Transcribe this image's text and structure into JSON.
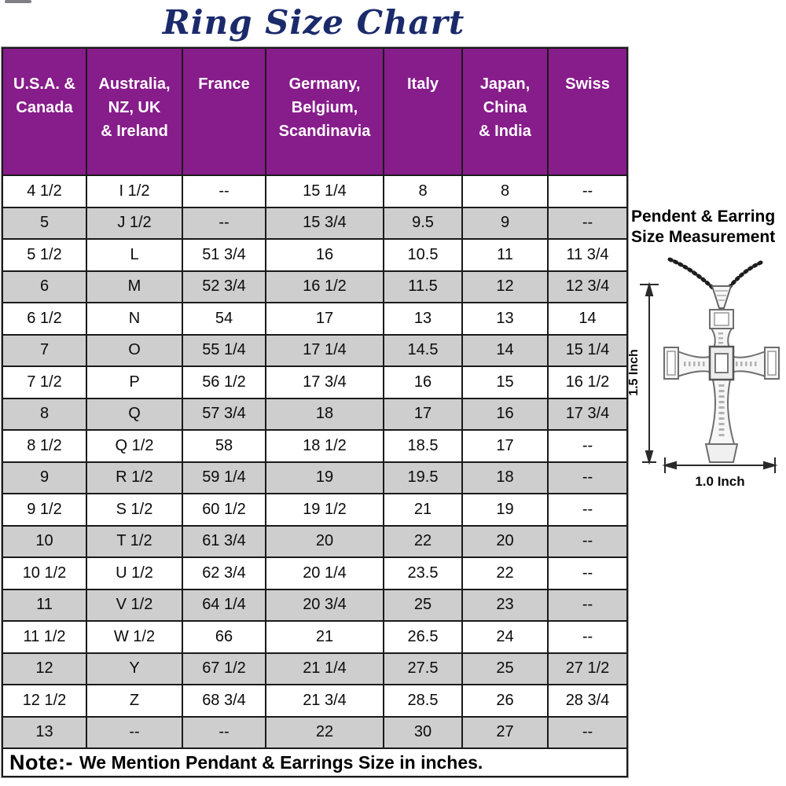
{
  "title": "Ring Size Chart",
  "table": {
    "headers": [
      "U.S.A. &\nCanada",
      "Australia,\nNZ, UK\n& Ireland",
      "France",
      "Germany,\nBelgium,\nScandinavia",
      "Italy",
      "Japan,\nChina\n& India",
      "Swiss"
    ],
    "rows": [
      [
        "4 1/2",
        "I 1/2",
        "--",
        "15 1/4",
        "8",
        "8",
        "--"
      ],
      [
        "5",
        "J 1/2",
        "--",
        "15 3/4",
        "9.5",
        "9",
        "--"
      ],
      [
        "5 1/2",
        "L",
        "51 3/4",
        "16",
        "10.5",
        "11",
        "11 3/4"
      ],
      [
        "6",
        "M",
        "52 3/4",
        "16 1/2",
        "11.5",
        "12",
        "12 3/4"
      ],
      [
        "6 1/2",
        "N",
        "54",
        "17",
        "13",
        "13",
        "14"
      ],
      [
        "7",
        "O",
        "55 1/4",
        "17 1/4",
        "14.5",
        "14",
        "15 1/4"
      ],
      [
        "7 1/2",
        "P",
        "56 1/2",
        "17 3/4",
        "16",
        "15",
        "16 1/2"
      ],
      [
        "8",
        "Q",
        "57 3/4",
        "18",
        "17",
        "16",
        "17 3/4"
      ],
      [
        "8 1/2",
        "Q 1/2",
        "58",
        "18 1/2",
        "18.5",
        "17",
        "--"
      ],
      [
        "9",
        "R 1/2",
        "59 1/4",
        "19",
        "19.5",
        "18",
        "--"
      ],
      [
        "9 1/2",
        "S 1/2",
        "60 1/2",
        "19 1/2",
        "21",
        "19",
        "--"
      ],
      [
        "10",
        "T 1/2",
        "61 3/4",
        "20",
        "22",
        "20",
        "--"
      ],
      [
        "10 1/2",
        "U 1/2",
        "62 3/4",
        "20 1/4",
        "23.5",
        "22",
        "--"
      ],
      [
        "11",
        "V 1/2",
        "64 1/4",
        "20 3/4",
        "25",
        "23",
        "--"
      ],
      [
        "11 1/2",
        "W 1/2",
        "66",
        "21",
        "26.5",
        "24",
        "--"
      ],
      [
        "12",
        "Y",
        "67 1/2",
        "21 1/4",
        "27.5",
        "25",
        "27 1/2"
      ],
      [
        "12 1/2",
        "Z",
        "68 3/4",
        "21 3/4",
        "28.5",
        "26",
        "28 3/4"
      ],
      [
        "13",
        "--",
        "--",
        "22",
        "30",
        "27",
        "--"
      ]
    ],
    "note_prefix": "Note:-",
    "note_text": "We Mention Pendant & Earrings Size in inches."
  },
  "side_panel": {
    "title_line1": "Pendent & Earring",
    "title_line2": "Size Measurement",
    "height_label": "1.5 Inch",
    "width_label": "1.0 Inch"
  },
  "colors": {
    "header_bg": "#871C8B",
    "header_text": "#FFFFFF",
    "title_text": "#1B2A6B",
    "alt_row_bg": "#CECECE",
    "table_border": "#1A1A1A"
  }
}
